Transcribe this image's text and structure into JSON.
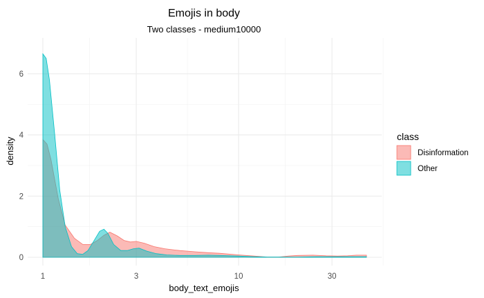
{
  "chart_data": {
    "type": "area",
    "title": "Emojis in body",
    "subtitle": "Two classes - medium10000",
    "xlabel": "body_text_emojis",
    "ylabel": "density",
    "x_scale": "log10",
    "xlim": [
      1,
      45
    ],
    "ylim": [
      0,
      6.9
    ],
    "x_ticks": [
      1,
      3,
      10,
      30
    ],
    "x_tick_labels": [
      "1",
      "3",
      "10",
      "30"
    ],
    "y_ticks": [
      0,
      2,
      4,
      6
    ],
    "y_tick_labels": [
      "0",
      "2",
      "4",
      "6"
    ],
    "grid": true,
    "legend": {
      "title": "class",
      "position": "right"
    },
    "series": [
      {
        "name": "Disinformation",
        "color": "#F8766D",
        "x": [
          1,
          1.05,
          1.1,
          1.2,
          1.3,
          1.45,
          1.6,
          1.75,
          1.9,
          2.05,
          2.2,
          2.4,
          2.6,
          2.8,
          3.0,
          3.3,
          3.7,
          4.2,
          5,
          6,
          7,
          8,
          10,
          12,
          14,
          16,
          18,
          20,
          24,
          28,
          32,
          36,
          40,
          45
        ],
        "y": [
          3.85,
          3.7,
          3.2,
          1.9,
          1.05,
          0.62,
          0.42,
          0.42,
          0.55,
          0.72,
          0.82,
          0.7,
          0.55,
          0.5,
          0.52,
          0.46,
          0.35,
          0.28,
          0.22,
          0.18,
          0.15,
          0.13,
          0.08,
          0.04,
          0.01,
          0.01,
          0.04,
          0.06,
          0.07,
          0.05,
          0.04,
          0.05,
          0.07,
          0.07
        ]
      },
      {
        "name": "Other",
        "color": "#00BFC4",
        "x": [
          1,
          1.04,
          1.08,
          1.15,
          1.22,
          1.3,
          1.4,
          1.5,
          1.6,
          1.7,
          1.8,
          1.95,
          2.05,
          2.15,
          2.3,
          2.5,
          2.7,
          2.9,
          3.1,
          3.4,
          3.8,
          4.3,
          5,
          6,
          7,
          8,
          10,
          12,
          14,
          16,
          20,
          25,
          30,
          35,
          40,
          45
        ],
        "y": [
          6.65,
          6.5,
          5.8,
          4.0,
          2.2,
          1.0,
          0.35,
          0.12,
          0.1,
          0.22,
          0.48,
          0.85,
          0.92,
          0.78,
          0.42,
          0.22,
          0.22,
          0.28,
          0.3,
          0.2,
          0.12,
          0.08,
          0.06,
          0.06,
          0.07,
          0.06,
          0.04,
          0.02,
          0.01,
          0.01,
          0.01,
          0.02,
          0.02,
          0.02,
          0.02,
          0.02
        ]
      }
    ]
  }
}
